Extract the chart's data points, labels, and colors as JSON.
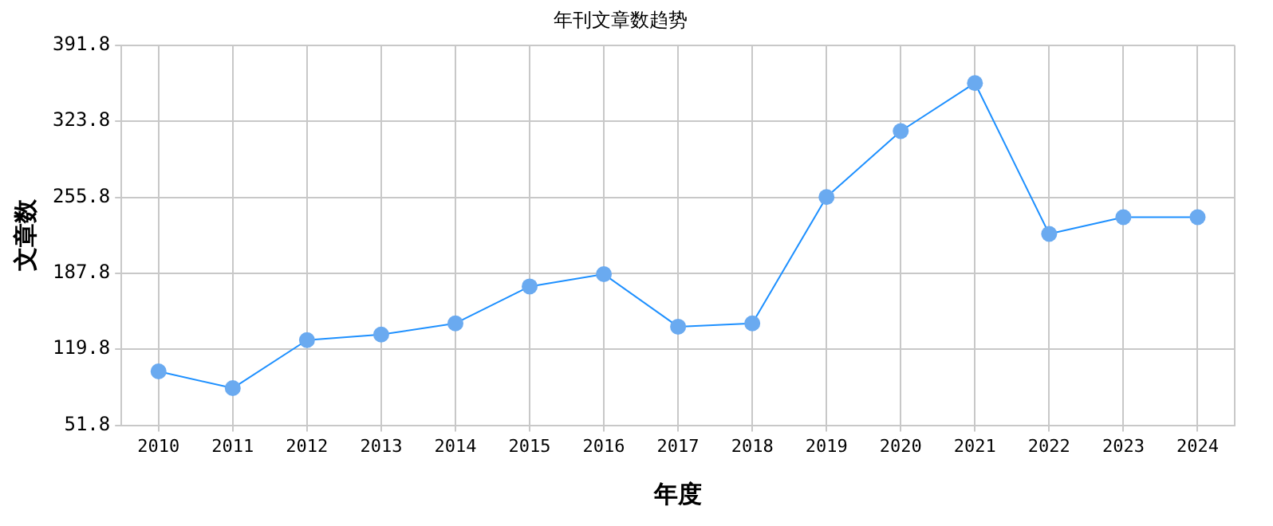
{
  "chart_data": {
    "type": "line",
    "title": "年刊文章数趋势",
    "xlabel": "年度",
    "ylabel": "文章数",
    "categories": [
      "2010",
      "2011",
      "2012",
      "2013",
      "2014",
      "2015",
      "2016",
      "2017",
      "2018",
      "2019",
      "2020",
      "2021",
      "2022",
      "2023",
      "2024"
    ],
    "series": [
      {
        "color": "#1e90ff",
        "values": [
          100,
          85,
          128,
          133,
          143,
          176,
          187,
          140,
          143,
          256,
          315,
          358,
          223,
          238,
          238
        ]
      }
    ],
    "ylim": [
      51.8,
      391.8
    ],
    "yticks": [
      51.8,
      119.8,
      187.8,
      255.8,
      323.8,
      391.8
    ],
    "grid": true,
    "legend": false,
    "marker": "circle",
    "line_style": "solid"
  }
}
